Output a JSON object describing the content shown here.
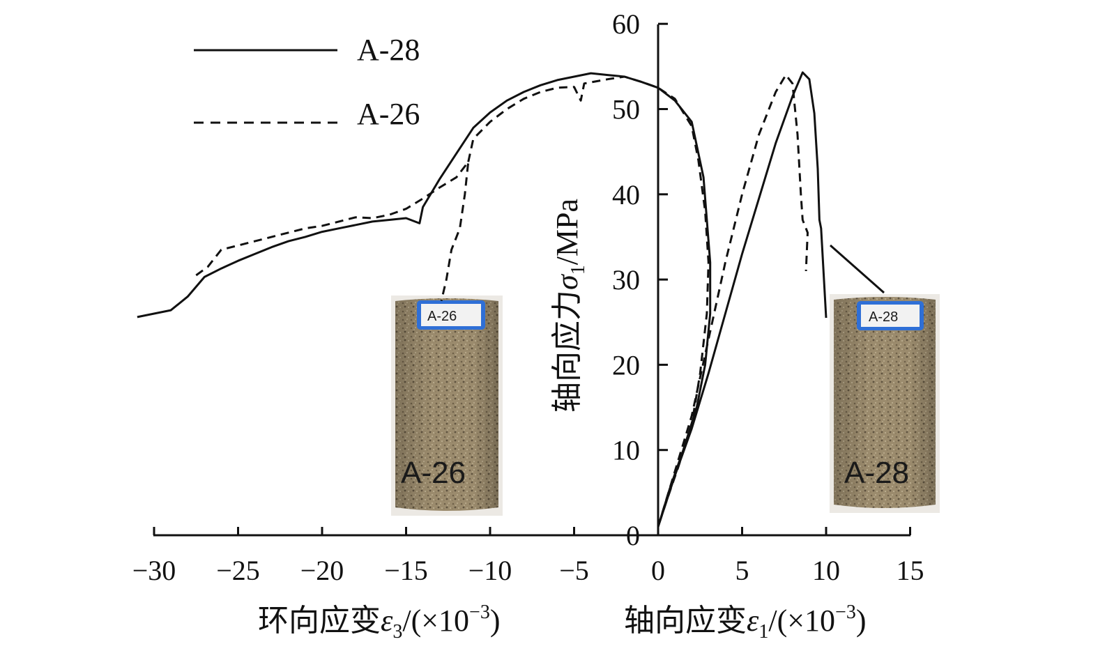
{
  "chart_data": {
    "type": "line",
    "title": "",
    "xlabel_left": "环向应变ε3/(×10−3)",
    "xlabel_left_parts": {
      "pre": "环向应变",
      "sym": "ε",
      "sub": "3",
      "post": "/(×10",
      "sup": "−3",
      "close": ")"
    },
    "xlabel_right": "轴向应变ε1/(×10−3)",
    "xlabel_right_parts": {
      "pre": "轴向应变",
      "sym": "ε",
      "sub": "1",
      "post": "/(×10",
      "sup": "−3",
      "close": ")"
    },
    "ylabel": "轴向应力σ1/MPa",
    "ylabel_parts": {
      "pre": "轴向应力",
      "sym": "σ",
      "sub": "1",
      "post": "/MPa"
    },
    "xlim": [
      -30,
      15
    ],
    "ylim": [
      0,
      60
    ],
    "x_ticks": [
      -30,
      -25,
      -20,
      -15,
      -10,
      -5,
      0,
      5,
      10,
      15
    ],
    "x_tick_labels": [
      "−30",
      "−25",
      "−20",
      "−15",
      "−10",
      "−5",
      "0",
      "5",
      "10",
      "15"
    ],
    "y_ticks": [
      0,
      10,
      20,
      30,
      40,
      50,
      60
    ],
    "y_tick_labels": [
      "0",
      "10",
      "20",
      "30",
      "40",
      "50",
      "60"
    ],
    "grid": false,
    "legend_position": "top-left",
    "series": [
      {
        "name": "A-28",
        "style": "solid",
        "color": "#111111",
        "lateral": [
          {
            "x": -31.0,
            "y": 25.6
          },
          {
            "x": -30.0,
            "y": 26.0
          },
          {
            "x": -29.0,
            "y": 26.4
          },
          {
            "x": -28.0,
            "y": 28.0
          },
          {
            "x": -27.0,
            "y": 30.3
          },
          {
            "x": -26.0,
            "y": 31.3
          },
          {
            "x": -25.0,
            "y": 32.2
          },
          {
            "x": -24.0,
            "y": 33.0
          },
          {
            "x": -23.0,
            "y": 33.8
          },
          {
            "x": -22.0,
            "y": 34.5
          },
          {
            "x": -21.0,
            "y": 35.0
          },
          {
            "x": -20.0,
            "y": 35.6
          },
          {
            "x": -19.0,
            "y": 36.0
          },
          {
            "x": -18.0,
            "y": 36.4
          },
          {
            "x": -17.0,
            "y": 36.8
          },
          {
            "x": -16.0,
            "y": 37.0
          },
          {
            "x": -15.0,
            "y": 37.2
          },
          {
            "x": -14.2,
            "y": 36.6
          },
          {
            "x": -14.0,
            "y": 38.5
          },
          {
            "x": -13.0,
            "y": 41.8
          },
          {
            "x": -12.0,
            "y": 44.8
          },
          {
            "x": -11.0,
            "y": 47.8
          },
          {
            "x": -10.0,
            "y": 49.6
          },
          {
            "x": -9.0,
            "y": 51.0
          },
          {
            "x": -8.0,
            "y": 52.0
          },
          {
            "x": -7.0,
            "y": 52.8
          },
          {
            "x": -6.0,
            "y": 53.4
          },
          {
            "x": -5.0,
            "y": 53.8
          },
          {
            "x": -4.0,
            "y": 54.2
          },
          {
            "x": -3.0,
            "y": 54.0
          },
          {
            "x": -2.0,
            "y": 53.8
          },
          {
            "x": -1.0,
            "y": 53.2
          },
          {
            "x": 0.0,
            "y": 52.5
          },
          {
            "x": 1.0,
            "y": 51.0
          },
          {
            "x": 2.0,
            "y": 48.5
          },
          {
            "x": 2.7,
            "y": 42.0
          },
          {
            "x": 3.1,
            "y": 32.0
          },
          {
            "x": 3.1,
            "y": 26.0
          },
          {
            "x": 2.8,
            "y": 20.0
          },
          {
            "x": 2.3,
            "y": 15.0
          },
          {
            "x": 1.5,
            "y": 10.0
          },
          {
            "x": 0.7,
            "y": 5.5
          },
          {
            "x": 0.0,
            "y": 1.0
          }
        ],
        "axial": [
          {
            "x": 0.0,
            "y": 1.0
          },
          {
            "x": 1.0,
            "y": 7.0
          },
          {
            "x": 2.0,
            "y": 12.5
          },
          {
            "x": 3.0,
            "y": 19.0
          },
          {
            "x": 4.0,
            "y": 26.0
          },
          {
            "x": 5.0,
            "y": 33.0
          },
          {
            "x": 6.0,
            "y": 39.5
          },
          {
            "x": 7.0,
            "y": 46.0
          },
          {
            "x": 8.0,
            "y": 51.5
          },
          {
            "x": 8.6,
            "y": 54.3
          },
          {
            "x": 9.0,
            "y": 53.5
          },
          {
            "x": 9.3,
            "y": 49.5
          },
          {
            "x": 9.5,
            "y": 43.0
          },
          {
            "x": 9.6,
            "y": 37.0
          },
          {
            "x": 9.7,
            "y": 36.0
          },
          {
            "x": 9.8,
            "y": 32.5
          },
          {
            "x": 9.9,
            "y": 29.0
          },
          {
            "x": 10.0,
            "y": 25.5
          }
        ]
      },
      {
        "name": "A-26",
        "style": "dashed",
        "color": "#111111",
        "lateral": [
          {
            "x": -27.5,
            "y": 30.5
          },
          {
            "x": -26.8,
            "y": 31.5
          },
          {
            "x": -26.0,
            "y": 33.5
          },
          {
            "x": -25.0,
            "y": 34.0
          },
          {
            "x": -24.0,
            "y": 34.5
          },
          {
            "x": -23.0,
            "y": 35.0
          },
          {
            "x": -22.0,
            "y": 35.5
          },
          {
            "x": -21.0,
            "y": 36.0
          },
          {
            "x": -20.0,
            "y": 36.3
          },
          {
            "x": -19.0,
            "y": 36.8
          },
          {
            "x": -18.0,
            "y": 37.3
          },
          {
            "x": -17.0,
            "y": 37.2
          },
          {
            "x": -16.0,
            "y": 37.6
          },
          {
            "x": -15.0,
            "y": 38.3
          },
          {
            "x": -14.0,
            "y": 39.5
          },
          {
            "x": -13.0,
            "y": 40.8
          },
          {
            "x": -12.0,
            "y": 42.0
          },
          {
            "x": -11.3,
            "y": 43.8
          },
          {
            "x": -11.5,
            "y": 40.0
          },
          {
            "x": -11.8,
            "y": 36.0
          },
          {
            "x": -12.3,
            "y": 33.5
          },
          {
            "x": -12.6,
            "y": 30.0
          },
          {
            "x": -12.9,
            "y": 27.5
          }
        ],
        "lateral_upper": [
          {
            "x": -11.3,
            "y": 43.8
          },
          {
            "x": -11.0,
            "y": 46.5
          },
          {
            "x": -10.0,
            "y": 48.5
          },
          {
            "x": -9.0,
            "y": 50.0
          },
          {
            "x": -8.0,
            "y": 51.2
          },
          {
            "x": -7.0,
            "y": 52.0
          },
          {
            "x": -6.0,
            "y": 52.5
          },
          {
            "x": -5.0,
            "y": 52.6
          },
          {
            "x": -4.6,
            "y": 51.0
          },
          {
            "x": -4.4,
            "y": 53.0
          },
          {
            "x": -3.0,
            "y": 53.5
          },
          {
            "x": -2.0,
            "y": 53.8
          },
          {
            "x": -1.0,
            "y": 53.2
          },
          {
            "x": 0.0,
            "y": 52.5
          },
          {
            "x": 1.0,
            "y": 51.2
          },
          {
            "x": 2.0,
            "y": 48.0
          },
          {
            "x": 2.4,
            "y": 44.0
          },
          {
            "x": 2.8,
            "y": 38.0
          },
          {
            "x": 3.0,
            "y": 32.0
          },
          {
            "x": 2.9,
            "y": 26.0
          },
          {
            "x": 2.5,
            "y": 19.0
          },
          {
            "x": 2.0,
            "y": 13.0
          },
          {
            "x": 1.2,
            "y": 8.0
          },
          {
            "x": 0.5,
            "y": 4.0
          },
          {
            "x": 0.0,
            "y": 1.0
          }
        ],
        "axial": [
          {
            "x": 0.0,
            "y": 1.0
          },
          {
            "x": 1.0,
            "y": 7.5
          },
          {
            "x": 2.0,
            "y": 14.0
          },
          {
            "x": 3.0,
            "y": 23.0
          },
          {
            "x": 4.0,
            "y": 32.0
          },
          {
            "x": 5.0,
            "y": 40.0
          },
          {
            "x": 6.0,
            "y": 47.0
          },
          {
            "x": 7.0,
            "y": 52.0
          },
          {
            "x": 7.6,
            "y": 54.0
          },
          {
            "x": 8.0,
            "y": 53.0
          },
          {
            "x": 8.3,
            "y": 47.0
          },
          {
            "x": 8.5,
            "y": 40.0
          },
          {
            "x": 8.6,
            "y": 37.0
          },
          {
            "x": 8.9,
            "y": 35.5
          },
          {
            "x": 8.8,
            "y": 31.0
          }
        ]
      }
    ],
    "annotations": [
      {
        "text": "A-26",
        "kind": "specimen-photo"
      },
      {
        "text": "A-28",
        "kind": "specimen-photo"
      }
    ],
    "photo_tags": [
      "A-26",
      "A-28"
    ]
  }
}
